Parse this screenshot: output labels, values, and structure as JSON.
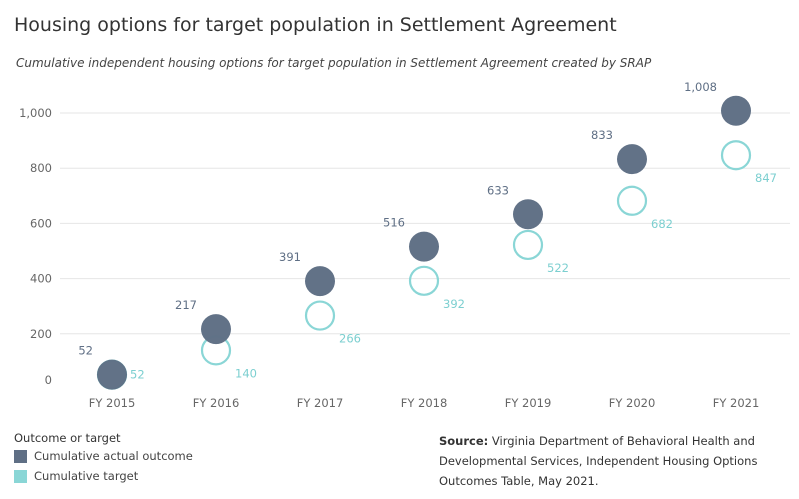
{
  "title": "Housing options for target population in Settlement Agreement",
  "subtitle": "Cumulative independent housing options for target population in Settlement Agreement created by SRAP",
  "legend": {
    "title": "Outcome or target",
    "items": [
      {
        "label": "Cumulative actual outcome",
        "color": "#5f6f85"
      },
      {
        "label": "Cumulative target",
        "color": "#8ad6d6"
      }
    ]
  },
  "source": {
    "label": "Source:",
    "text": " Virginia Department of Behavioral Health and Developmental Services, Independent Housing Options Outcomes Table, May 2021."
  },
  "chart_data": {
    "type": "scatter",
    "categories": [
      "FY 2015",
      "FY 2016",
      "FY 2017",
      "FY 2018",
      "FY 2019",
      "FY 2020",
      "FY 2021"
    ],
    "ylim": [
      0,
      1100
    ],
    "yticks": [
      0,
      200,
      400,
      600,
      800,
      1000
    ],
    "ytick_labels": [
      "0",
      "200",
      "400",
      "600",
      "800",
      "1,000"
    ],
    "grid": true,
    "legend_position": "bottom-left",
    "series": [
      {
        "name": "Cumulative actual outcome",
        "color": "#5f6f85",
        "style": "filled",
        "values": [
          52,
          217,
          391,
          516,
          633,
          833,
          1008
        ],
        "labels": [
          "52",
          "217",
          "391",
          "516",
          "633",
          "833",
          "1,008"
        ]
      },
      {
        "name": "Cumulative target",
        "color": "#8ad6d6",
        "style": "hollow",
        "values": [
          52,
          140,
          266,
          392,
          522,
          682,
          847
        ],
        "labels": [
          "52",
          "140",
          "266",
          "392",
          "522",
          "682",
          "847"
        ]
      }
    ]
  }
}
